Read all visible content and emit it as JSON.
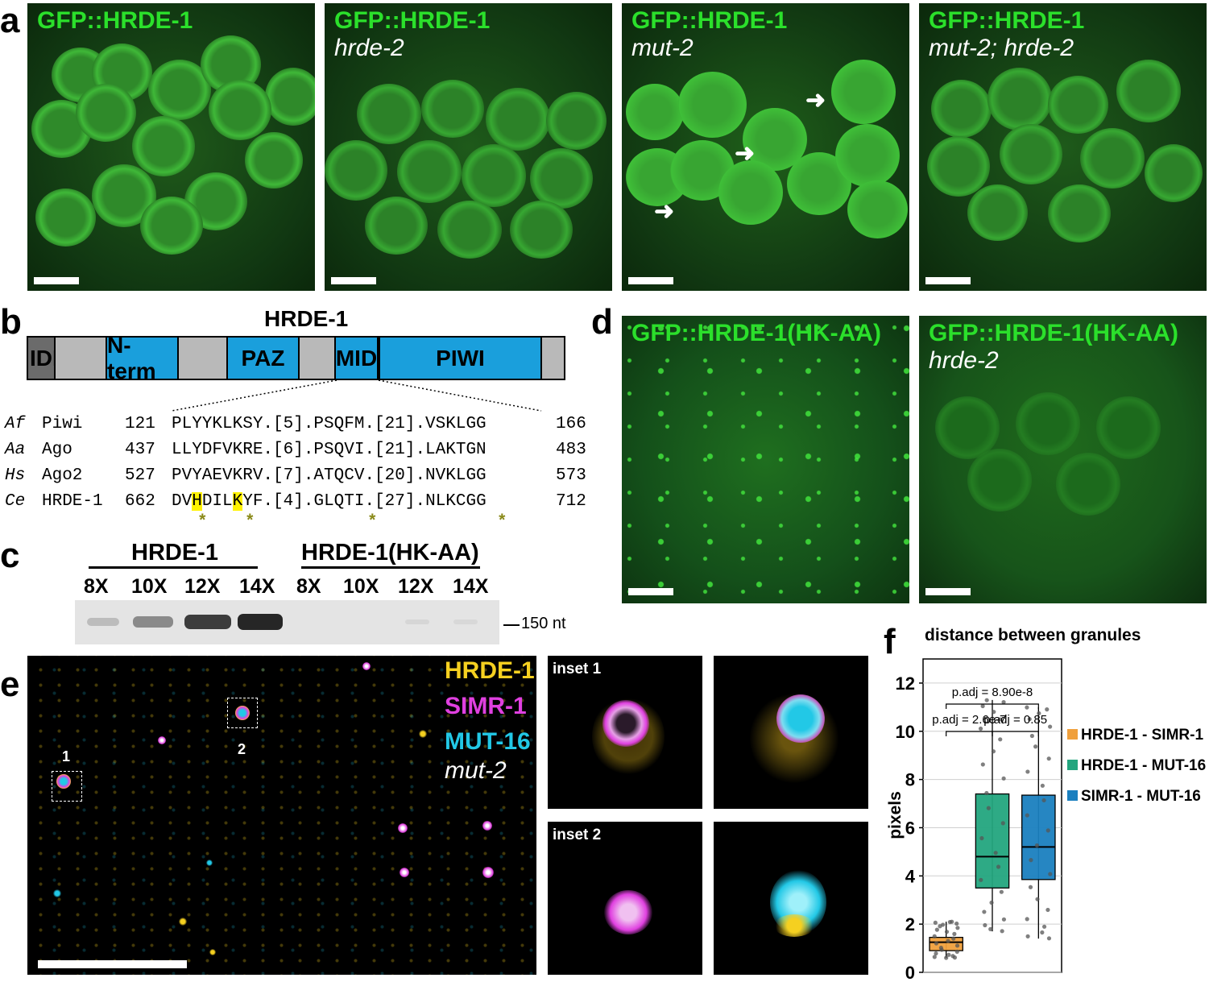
{
  "panel_letters": {
    "a": "a",
    "b": "b",
    "c": "c",
    "d": "d",
    "e": "e",
    "f": "f"
  },
  "panel_a": {
    "images": [
      {
        "line1": "GFP::HRDE-1",
        "line2": ""
      },
      {
        "line1": "GFP::HRDE-1",
        "line2": "hrde-2"
      },
      {
        "line1": "GFP::HRDE-1",
        "line2": "mut-2"
      },
      {
        "line1": "GFP::HRDE-1",
        "line2": "mut-2; hrde-2"
      }
    ]
  },
  "panel_b": {
    "title": "HRDE-1",
    "domains": [
      {
        "label": "IDR",
        "color": "#6b6b6b"
      },
      {
        "label": "",
        "color": "#b9b9b9"
      },
      {
        "label": "N-term",
        "color": "#1a9fdc"
      },
      {
        "label": "",
        "color": "#b9b9b9"
      },
      {
        "label": "PAZ",
        "color": "#1a9fdc"
      },
      {
        "label": "",
        "color": "#b9b9b9"
      },
      {
        "label": "MID",
        "color": "#1a9fdc"
      },
      {
        "label": "PIWI",
        "color": "#1a9fdc"
      },
      {
        "label": "",
        "color": "#b9b9b9"
      }
    ],
    "alignment": [
      {
        "species": "Af",
        "protein": "Piwi",
        "start": "121",
        "pre": "PLYYKLKSY.[5].PSQFM.[21].VSKLGG",
        "end": "166"
      },
      {
        "species": "Aa",
        "protein": "Ago",
        "start": "437",
        "pre": "LLYDFVKRE.[6].PSQVI.[21].LAKTGN",
        "end": "483"
      },
      {
        "species": "Hs",
        "protein": "Ago2",
        "start": "527",
        "pre": "PVYAEVKRV.[7].ATQCV.[20].NVKLGG",
        "end": "573"
      },
      {
        "species": "Ce",
        "protein": "HRDE-1",
        "start": "662",
        "seq_a": "DV",
        "hl1": "H",
        "seq_b": "DIL",
        "hl2": "K",
        "seq_c": "YF.[4].GLQTI.[27].NLKCGG",
        "end": "712"
      }
    ],
    "star": "*"
  },
  "panel_c": {
    "group1": "HRDE-1",
    "group2": "HRDE-1(HK-AA)",
    "lanes": [
      "8X",
      "10X",
      "12X",
      "14X",
      "8X",
      "10X",
      "12X",
      "14X"
    ],
    "marker": "150 nt"
  },
  "panel_d": {
    "images": [
      {
        "line1": "GFP::HRDE-1(HK-AA)",
        "line2": ""
      },
      {
        "line1": "GFP::HRDE-1(HK-AA)",
        "line2": "hrde-2"
      }
    ]
  },
  "panel_e": {
    "channels": [
      {
        "label": "HRDE-1",
        "color": "#f5d020"
      },
      {
        "label": "SIMR-1",
        "color": "#e040e0"
      },
      {
        "label": "MUT-16",
        "color": "#22c8e6"
      }
    ],
    "genotype": "mut-2",
    "box1": "1",
    "box2": "2",
    "inset1": "inset 1",
    "inset2": "inset 2"
  },
  "chart_data": {
    "type": "box",
    "title": "distance between granules",
    "ylabel": "pixels",
    "xlabel": "",
    "ylim": [
      0,
      13
    ],
    "yticks": [
      0,
      2,
      4,
      6,
      8,
      10,
      12
    ],
    "grid": true,
    "legend_position": "right",
    "series": [
      {
        "name": "HRDE-1 - SIMR-1",
        "color": "#f0a03c",
        "min": 0.6,
        "q1": 0.9,
        "median": 1.25,
        "q3": 1.45,
        "max": 2.1
      },
      {
        "name": "HRDE-1 - MUT-16",
        "color": "#23a57e",
        "min": 1.7,
        "q1": 3.5,
        "median": 4.8,
        "q3": 7.4,
        "max": 11.3
      },
      {
        "name": "SIMR-1 - MUT-16",
        "color": "#1a7fbf",
        "min": 1.4,
        "q1": 3.85,
        "median": 5.2,
        "q3": 7.35,
        "max": 11.0
      }
    ],
    "annotations": [
      {
        "text": "p.adj  = 8.90e-8",
        "between": [
          "HRDE-1 - SIMR-1",
          "SIMR-1 - MUT-16"
        ]
      },
      {
        "text": "p.adj = 2.6e-7",
        "between": [
          "HRDE-1 - SIMR-1",
          "HRDE-1 - MUT-16"
        ]
      },
      {
        "text": "p.adj = 0.85",
        "between": [
          "HRDE-1 - MUT-16",
          "SIMR-1 - MUT-16"
        ]
      }
    ]
  }
}
